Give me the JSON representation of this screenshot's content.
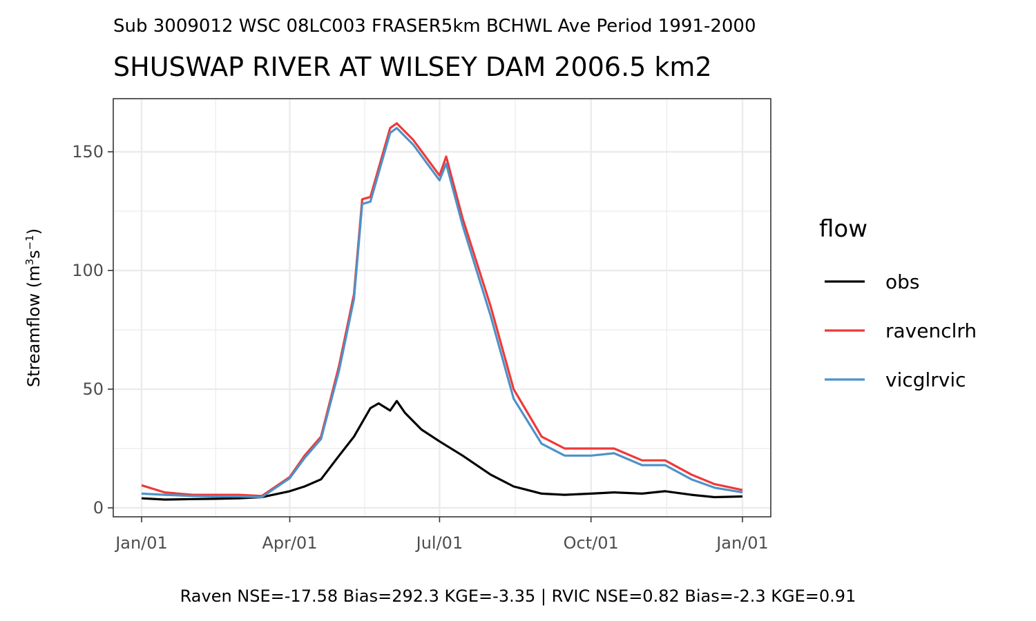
{
  "chart_data": {
    "type": "line",
    "subtitle": "Sub 3009012 WSC 08LC003 FRASER5km BCHWL Ave Period 1991-2000",
    "title": "SHUSWAP RIVER AT WILSEY DAM 2006.5 km2",
    "ylabel": "Streamflow (m",
    "ylabel_sup1": "3",
    "ylabel_mid": "s",
    "ylabel_sup2": "−1",
    "ylabel_end": ")",
    "caption": "Raven NSE=-17.58 Bias=292.3 KGE=-3.35 | RVIC NSE=0.82 Bias=-2.3 KGE=0.91",
    "x_ticks": [
      {
        "label": "Jan/01",
        "value": "Jan/01"
      },
      {
        "label": "Apr/01",
        "value": "Apr/01"
      },
      {
        "label": "Jul/01",
        "value": "Jul/01"
      },
      {
        "label": "Oct/01",
        "value": "Oct/01"
      },
      {
        "label": "Jan/01",
        "value": "Jan/01 (next year)"
      }
    ],
    "y_ticks": [
      "0",
      "50",
      "100",
      "150"
    ],
    "ylim": [
      -4,
      165
    ],
    "grid": true,
    "legend": {
      "title": "flow",
      "position": "right"
    },
    "series": [
      {
        "name": "obs",
        "color": "#000000",
        "points": [
          [
            "Jan/01",
            4
          ],
          [
            "Jan/15",
            3.5
          ],
          [
            "Feb/01",
            3.7
          ],
          [
            "Feb/15",
            3.8
          ],
          [
            "Mar/01",
            4
          ],
          [
            "Mar/15",
            4.5
          ],
          [
            "Apr/01",
            7
          ],
          [
            "Apr/10",
            9
          ],
          [
            "Apr/20",
            12
          ],
          [
            "May/01",
            22
          ],
          [
            "May/10",
            30
          ],
          [
            "May/20",
            42
          ],
          [
            "May/25",
            44
          ],
          [
            "Jun/01",
            41
          ],
          [
            "Jun/05",
            45
          ],
          [
            "Jun/10",
            40
          ],
          [
            "Jun/20",
            33
          ],
          [
            "Jul/01",
            28
          ],
          [
            "Jul/15",
            22
          ],
          [
            "Aug/01",
            14
          ],
          [
            "Aug/15",
            9
          ],
          [
            "Sep/01",
            6
          ],
          [
            "Sep/15",
            5.5
          ],
          [
            "Oct/01",
            6
          ],
          [
            "Oct/15",
            6.5
          ],
          [
            "Nov/01",
            6
          ],
          [
            "Nov/15",
            7
          ],
          [
            "Dec/01",
            5.5
          ],
          [
            "Dec/15",
            4.5
          ],
          [
            "Jan/01 (next year)",
            4.8
          ]
        ]
      },
      {
        "name": "ravenclrh",
        "color": "#f03838",
        "points": [
          [
            "Jan/01",
            9.5
          ],
          [
            "Jan/15",
            6.5
          ],
          [
            "Feb/01",
            5.5
          ],
          [
            "Feb/15",
            5.5
          ],
          [
            "Mar/01",
            5.5
          ],
          [
            "Mar/15",
            5
          ],
          [
            "Apr/01",
            13
          ],
          [
            "Apr/10",
            22
          ],
          [
            "Apr/20",
            30
          ],
          [
            "May/01",
            60
          ],
          [
            "May/10",
            90
          ],
          [
            "May/15",
            130
          ],
          [
            "May/20",
            131
          ],
          [
            "Jun/01",
            160
          ],
          [
            "Jun/05",
            162
          ],
          [
            "Jun/15",
            155
          ],
          [
            "Jul/01",
            140
          ],
          [
            "Jul/05",
            148
          ],
          [
            "Jul/15",
            122
          ],
          [
            "Aug/01",
            85
          ],
          [
            "Aug/15",
            50
          ],
          [
            "Sep/01",
            30
          ],
          [
            "Sep/15",
            25
          ],
          [
            "Oct/01",
            25
          ],
          [
            "Oct/15",
            25
          ],
          [
            "Nov/01",
            20
          ],
          [
            "Nov/15",
            20
          ],
          [
            "Dec/01",
            14
          ],
          [
            "Dec/15",
            10
          ],
          [
            "Jan/01 (next year)",
            7.5
          ]
        ]
      },
      {
        "name": "vicglrvic",
        "color": "#4e92c8",
        "points": [
          [
            "Jan/01",
            6
          ],
          [
            "Jan/15",
            5.5
          ],
          [
            "Feb/01",
            5
          ],
          [
            "Feb/15",
            4.8
          ],
          [
            "Mar/01",
            4.8
          ],
          [
            "Mar/15",
            4.5
          ],
          [
            "Apr/01",
            12.5
          ],
          [
            "Apr/10",
            21
          ],
          [
            "Apr/20",
            29
          ],
          [
            "May/01",
            58
          ],
          [
            "May/10",
            88
          ],
          [
            "May/15",
            128
          ],
          [
            "May/20",
            129
          ],
          [
            "Jun/01",
            158
          ],
          [
            "Jun/05",
            160
          ],
          [
            "Jun/15",
            153
          ],
          [
            "Jul/01",
            138
          ],
          [
            "Jul/05",
            145
          ],
          [
            "Jul/15",
            119
          ],
          [
            "Aug/01",
            81
          ],
          [
            "Aug/15",
            46
          ],
          [
            "Sep/01",
            27
          ],
          [
            "Sep/15",
            22
          ],
          [
            "Oct/01",
            22
          ],
          [
            "Oct/15",
            23
          ],
          [
            "Nov/01",
            18
          ],
          [
            "Nov/15",
            18
          ],
          [
            "Dec/01",
            12
          ],
          [
            "Dec/15",
            8.5
          ],
          [
            "Jan/01 (next year)",
            6.5
          ]
        ]
      }
    ]
  }
}
